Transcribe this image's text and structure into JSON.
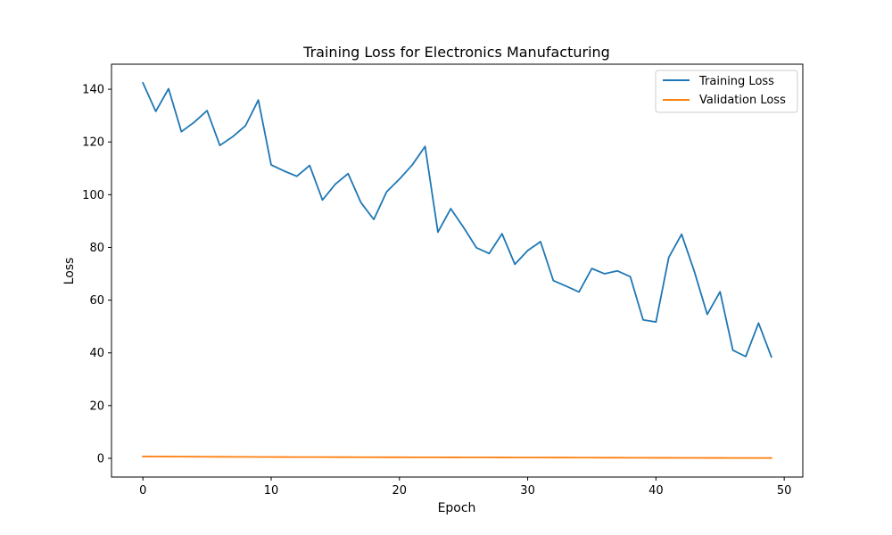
{
  "chart_data": {
    "type": "line",
    "title": "Training Loss for Electronics Manufacturing",
    "xlabel": "Epoch",
    "ylabel": "Loss",
    "xlim": [
      -2.45,
      51.45
    ],
    "ylim": [
      -7.1,
      149.5
    ],
    "x_ticks": [
      0,
      10,
      20,
      30,
      40,
      50
    ],
    "y_ticks": [
      0,
      20,
      40,
      60,
      80,
      100,
      120,
      140
    ],
    "grid": false,
    "legend_position": "top-right",
    "x": [
      0,
      1,
      2,
      3,
      4,
      5,
      6,
      7,
      8,
      9,
      10,
      11,
      12,
      13,
      14,
      15,
      16,
      17,
      18,
      19,
      20,
      21,
      22,
      23,
      24,
      25,
      26,
      27,
      28,
      29,
      30,
      31,
      32,
      33,
      34,
      35,
      36,
      37,
      38,
      39,
      40,
      41,
      42,
      43,
      44,
      45,
      46,
      47,
      48,
      49
    ],
    "series": [
      {
        "name": "Training Loss",
        "color": "#1f77b4",
        "values": [
          142.4,
          131.6,
          140.2,
          123.9,
          127.5,
          131.9,
          118.7,
          122,
          126.2,
          135.9,
          111.3,
          109,
          107,
          111.1,
          98,
          104,
          108,
          97,
          90.6,
          101.1,
          105.9,
          111.3,
          118.3,
          85.8,
          94.7,
          87.6,
          79.9,
          77.7,
          85.2,
          73.6,
          78.8,
          82.2,
          67.4,
          65.3,
          63.1,
          72,
          70,
          71.1,
          68.9,
          52.5,
          51.7,
          76.2,
          85,
          70.8,
          54.6,
          63.2,
          41,
          38.6,
          51.3,
          38.5
        ]
      },
      {
        "name": "Validation Loss",
        "color": "#ff7f0e",
        "values": [
          0.7,
          0.68,
          0.66,
          0.64,
          0.62,
          0.6,
          0.58,
          0.56,
          0.54,
          0.52,
          0.5,
          0.49,
          0.48,
          0.47,
          0.46,
          0.45,
          0.44,
          0.43,
          0.42,
          0.41,
          0.4,
          0.39,
          0.38,
          0.37,
          0.36,
          0.35,
          0.34,
          0.33,
          0.32,
          0.31,
          0.3,
          0.29,
          0.28,
          0.27,
          0.26,
          0.25,
          0.24,
          0.23,
          0.22,
          0.21,
          0.2,
          0.19,
          0.18,
          0.17,
          0.16,
          0.15,
          0.14,
          0.13,
          0.12,
          0.11
        ]
      }
    ]
  }
}
